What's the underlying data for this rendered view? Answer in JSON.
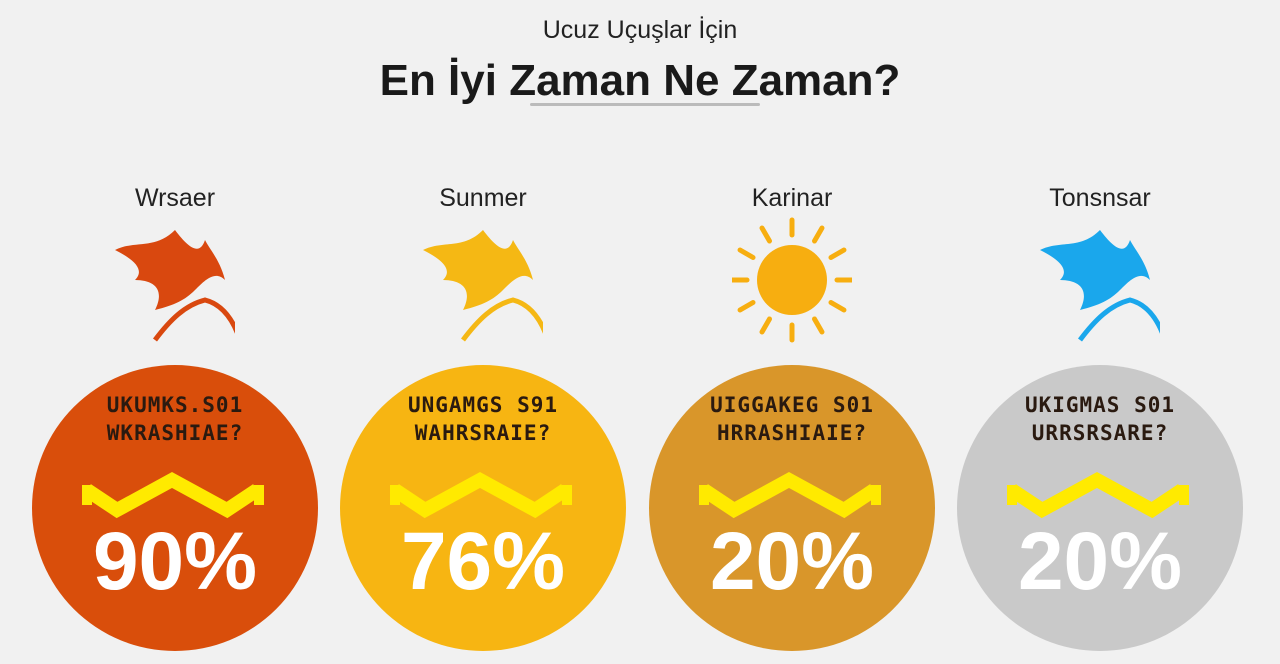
{
  "header": {
    "subtitle": "Ucuz Uçuşlar İçin",
    "title": "En İyi Zaman Ne Zaman?"
  },
  "seasons": [
    {
      "label": "Wrsaer",
      "icon": "leaf-icon",
      "color": "#D94E0B",
      "icon_color": "#D9480F",
      "line1": "UKUMKS.S01",
      "line2": "WKRASHIAE?",
      "percent": "90%"
    },
    {
      "label": "Sunmer",
      "icon": "leaf-icon",
      "color": "#F7B512",
      "icon_color": "#F5B814",
      "line1": "UNGAMGS S91",
      "line2": "WAHRSRAIE?",
      "percent": "76%"
    },
    {
      "label": "Karinar",
      "icon": "sun-icon",
      "color": "#D9962A",
      "icon_color": "#F7AE10",
      "line1": "UIGGAKEG S01",
      "line2": "HRRASHIAIE?",
      "percent": "20%"
    },
    {
      "label": "Tonsnsar",
      "icon": "leaf-icon",
      "color": "#C9C9C9",
      "icon_color": "#1AA7EC",
      "line1": "UKIGMAS S01",
      "line2": "URRSRSARE?",
      "percent": "20%"
    }
  ]
}
